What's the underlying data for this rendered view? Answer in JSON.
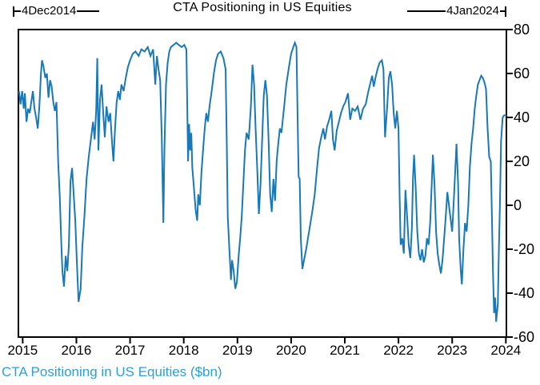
{
  "title": "CTA Positioning in US Equities",
  "annotations": {
    "start_label": "4Dec2014",
    "end_label": "4Jan2024"
  },
  "footer": {
    "legend": "CTA Positioning in US Equities ($bn)"
  },
  "colors": {
    "line": "#1878b8",
    "legend_text": "#2d9fd9",
    "axis": "#000000",
    "text": "#000000",
    "background": "#ffffff"
  },
  "chart_data": {
    "type": "line",
    "title": "CTA Positioning in US Equities",
    "xlabel": "",
    "ylabel": "$bn",
    "grid": false,
    "legend_position": "below-left",
    "x_start_label": "4Dec2014",
    "x_end_label": "4Jan2024",
    "x_range": [
      2014.92,
      2024.01
    ],
    "x_ticks": [
      2015,
      2016,
      2017,
      2018,
      2019,
      2020,
      2021,
      2022,
      2023,
      2024
    ],
    "ylim": [
      -60,
      80
    ],
    "y_ticks": [
      80,
      60,
      40,
      20,
      0,
      -20,
      -40,
      -60
    ],
    "series": [
      {
        "name": "CTA Positioning in US Equities ($bn)",
        "points": [
          [
            2014.93,
            52
          ],
          [
            2014.96,
            46
          ],
          [
            2014.99,
            52
          ],
          [
            2015.02,
            44
          ],
          [
            2015.04,
            51
          ],
          [
            2015.07,
            38
          ],
          [
            2015.1,
            44
          ],
          [
            2015.13,
            42
          ],
          [
            2015.16,
            47
          ],
          [
            2015.19,
            52
          ],
          [
            2015.22,
            44
          ],
          [
            2015.25,
            40
          ],
          [
            2015.28,
            35
          ],
          [
            2015.31,
            45
          ],
          [
            2015.34,
            60
          ],
          [
            2015.36,
            66
          ],
          [
            2015.39,
            63
          ],
          [
            2015.42,
            58
          ],
          [
            2015.45,
            60
          ],
          [
            2015.48,
            49
          ],
          [
            2015.51,
            57
          ],
          [
            2015.54,
            54
          ],
          [
            2015.57,
            47
          ],
          [
            2015.6,
            43
          ],
          [
            2015.63,
            47
          ],
          [
            2015.66,
            20
          ],
          [
            2015.69,
            4
          ],
          [
            2015.72,
            -18
          ],
          [
            2015.74,
            -30
          ],
          [
            2015.77,
            -37
          ],
          [
            2015.8,
            -23
          ],
          [
            2015.83,
            -30
          ],
          [
            2015.86,
            -18
          ],
          [
            2015.89,
            11
          ],
          [
            2015.92,
            17
          ],
          [
            2015.95,
            5
          ],
          [
            2015.98,
            -7
          ],
          [
            2016.01,
            -26
          ],
          [
            2016.04,
            -44
          ],
          [
            2016.08,
            -38
          ],
          [
            2016.11,
            -19
          ],
          [
            2016.15,
            -5
          ],
          [
            2016.19,
            12
          ],
          [
            2016.23,
            22
          ],
          [
            2016.27,
            30
          ],
          [
            2016.31,
            38
          ],
          [
            2016.34,
            30
          ],
          [
            2016.37,
            44
          ],
          [
            2016.39,
            67
          ],
          [
            2016.41,
            25
          ],
          [
            2016.44,
            48
          ],
          [
            2016.47,
            55
          ],
          [
            2016.5,
            42
          ],
          [
            2016.53,
            31
          ],
          [
            2016.56,
            45
          ],
          [
            2016.6,
            38
          ],
          [
            2016.63,
            42
          ],
          [
            2016.66,
            30
          ],
          [
            2016.69,
            20
          ],
          [
            2016.72,
            35
          ],
          [
            2016.75,
            47
          ],
          [
            2016.78,
            52
          ],
          [
            2016.81,
            48
          ],
          [
            2016.84,
            55
          ],
          [
            2016.88,
            52
          ],
          [
            2016.92,
            58
          ],
          [
            2016.96,
            63
          ],
          [
            2017.0,
            66
          ],
          [
            2017.05,
            69
          ],
          [
            2017.1,
            70
          ],
          [
            2017.16,
            68
          ],
          [
            2017.21,
            71
          ],
          [
            2017.27,
            70
          ],
          [
            2017.33,
            72
          ],
          [
            2017.38,
            68
          ],
          [
            2017.43,
            71
          ],
          [
            2017.47,
            55
          ],
          [
            2017.5,
            68
          ],
          [
            2017.53,
            62
          ],
          [
            2017.56,
            57
          ],
          [
            2017.59,
            31
          ],
          [
            2017.62,
            -8
          ],
          [
            2017.64,
            25
          ],
          [
            2017.67,
            55
          ],
          [
            2017.7,
            65
          ],
          [
            2017.73,
            70
          ],
          [
            2017.76,
            72
          ],
          [
            2017.81,
            73
          ],
          [
            2017.86,
            74
          ],
          [
            2017.91,
            73
          ],
          [
            2017.96,
            72
          ],
          [
            2018.01,
            73
          ],
          [
            2018.05,
            71
          ],
          [
            2018.08,
            20
          ],
          [
            2018.1,
            37
          ],
          [
            2018.12,
            25
          ],
          [
            2018.14,
            33
          ],
          [
            2018.16,
            17
          ],
          [
            2018.19,
            8
          ],
          [
            2018.22,
            -2
          ],
          [
            2018.25,
            -7
          ],
          [
            2018.27,
            5
          ],
          [
            2018.3,
            0
          ],
          [
            2018.33,
            15
          ],
          [
            2018.36,
            25
          ],
          [
            2018.39,
            35
          ],
          [
            2018.42,
            42
          ],
          [
            2018.45,
            38
          ],
          [
            2018.48,
            45
          ],
          [
            2018.52,
            52
          ],
          [
            2018.56,
            60
          ],
          [
            2018.6,
            66
          ],
          [
            2018.64,
            69
          ],
          [
            2018.69,
            70
          ],
          [
            2018.74,
            67
          ],
          [
            2018.78,
            62
          ],
          [
            2018.8,
            30
          ],
          [
            2018.82,
            -5
          ],
          [
            2018.85,
            -20
          ],
          [
            2018.88,
            -34
          ],
          [
            2018.9,
            -25
          ],
          [
            2018.93,
            -30
          ],
          [
            2018.96,
            -38
          ],
          [
            2018.99,
            -35
          ],
          [
            2019.02,
            -24
          ],
          [
            2019.05,
            -15
          ],
          [
            2019.08,
            -5
          ],
          [
            2019.11,
            10
          ],
          [
            2019.14,
            25
          ],
          [
            2019.17,
            33
          ],
          [
            2019.21,
            30
          ],
          [
            2019.25,
            45
          ],
          [
            2019.28,
            64
          ],
          [
            2019.31,
            55
          ],
          [
            2019.34,
            34
          ],
          [
            2019.37,
            16
          ],
          [
            2019.4,
            -4
          ],
          [
            2019.43,
            10
          ],
          [
            2019.46,
            30
          ],
          [
            2019.49,
            50
          ],
          [
            2019.52,
            57
          ],
          [
            2019.55,
            50
          ],
          [
            2019.58,
            30
          ],
          [
            2019.61,
            5
          ],
          [
            2019.64,
            -3
          ],
          [
            2019.67,
            12
          ],
          [
            2019.7,
            2
          ],
          [
            2019.73,
            20
          ],
          [
            2019.76,
            28
          ],
          [
            2019.79,
            35
          ],
          [
            2019.82,
            33
          ],
          [
            2019.87,
            45
          ],
          [
            2019.91,
            55
          ],
          [
            2019.96,
            63
          ],
          [
            2020.0,
            69
          ],
          [
            2020.04,
            72
          ],
          [
            2020.07,
            74
          ],
          [
            2020.1,
            72
          ],
          [
            2020.12,
            40
          ],
          [
            2020.14,
            13
          ],
          [
            2020.16,
            12
          ],
          [
            2020.18,
            -15
          ],
          [
            2020.21,
            -29
          ],
          [
            2020.24,
            -25
          ],
          [
            2020.28,
            -20
          ],
          [
            2020.32,
            -14
          ],
          [
            2020.36,
            -8
          ],
          [
            2020.4,
            -2
          ],
          [
            2020.44,
            5
          ],
          [
            2020.48,
            16
          ],
          [
            2020.52,
            26
          ],
          [
            2020.56,
            31
          ],
          [
            2020.6,
            35
          ],
          [
            2020.63,
            30
          ],
          [
            2020.67,
            36
          ],
          [
            2020.71,
            39
          ],
          [
            2020.75,
            43
          ],
          [
            2020.78,
            30
          ],
          [
            2020.81,
            25
          ],
          [
            2020.85,
            34
          ],
          [
            2020.89,
            38
          ],
          [
            2020.93,
            42
          ],
          [
            2020.97,
            45
          ],
          [
            2021.01,
            47
          ],
          [
            2021.06,
            51
          ],
          [
            2021.1,
            39
          ],
          [
            2021.14,
            44
          ],
          [
            2021.19,
            43
          ],
          [
            2021.24,
            45
          ],
          [
            2021.29,
            39
          ],
          [
            2021.34,
            44
          ],
          [
            2021.39,
            46
          ],
          [
            2021.43,
            51
          ],
          [
            2021.47,
            55
          ],
          [
            2021.51,
            59
          ],
          [
            2021.54,
            54
          ],
          [
            2021.57,
            58
          ],
          [
            2021.61,
            62
          ],
          [
            2021.65,
            65
          ],
          [
            2021.69,
            66
          ],
          [
            2021.72,
            62
          ],
          [
            2021.75,
            31
          ],
          [
            2021.79,
            45
          ],
          [
            2021.82,
            58
          ],
          [
            2021.85,
            61
          ],
          [
            2021.88,
            55
          ],
          [
            2021.91,
            42
          ],
          [
            2021.94,
            35
          ],
          [
            2021.97,
            43
          ],
          [
            2022.0,
            35
          ],
          [
            2022.02,
            5
          ],
          [
            2022.04,
            -18
          ],
          [
            2022.07,
            -15
          ],
          [
            2022.1,
            -22
          ],
          [
            2022.13,
            7
          ],
          [
            2022.16,
            -5
          ],
          [
            2022.19,
            -18
          ],
          [
            2022.22,
            -24
          ],
          [
            2022.25,
            -10
          ],
          [
            2022.27,
            12
          ],
          [
            2022.29,
            23
          ],
          [
            2022.32,
            8
          ],
          [
            2022.35,
            -12
          ],
          [
            2022.38,
            -22
          ],
          [
            2022.41,
            -25
          ],
          [
            2022.44,
            -20
          ],
          [
            2022.47,
            -26
          ],
          [
            2022.5,
            -23
          ],
          [
            2022.53,
            -15
          ],
          [
            2022.56,
            -18
          ],
          [
            2022.59,
            -8
          ],
          [
            2022.62,
            10
          ],
          [
            2022.64,
            23
          ],
          [
            2022.67,
            10
          ],
          [
            2022.7,
            -12
          ],
          [
            2022.73,
            -22
          ],
          [
            2022.76,
            -27
          ],
          [
            2022.79,
            -31
          ],
          [
            2022.82,
            -25
          ],
          [
            2022.85,
            -15
          ],
          [
            2022.88,
            -5
          ],
          [
            2022.91,
            6
          ],
          [
            2022.94,
            0
          ],
          [
            2022.97,
            -6
          ],
          [
            2023.0,
            -12
          ],
          [
            2023.03,
            2
          ],
          [
            2023.06,
            17
          ],
          [
            2023.08,
            28
          ],
          [
            2023.11,
            10
          ],
          [
            2023.13,
            -15
          ],
          [
            2023.16,
            -30
          ],
          [
            2023.18,
            -36
          ],
          [
            2023.21,
            -20
          ],
          [
            2023.24,
            -8
          ],
          [
            2023.27,
            -12
          ],
          [
            2023.3,
            0
          ],
          [
            2023.33,
            18
          ],
          [
            2023.36,
            28
          ],
          [
            2023.39,
            35
          ],
          [
            2023.42,
            44
          ],
          [
            2023.45,
            50
          ],
          [
            2023.48,
            55
          ],
          [
            2023.51,
            57
          ],
          [
            2023.54,
            59
          ],
          [
            2023.57,
            58
          ],
          [
            2023.6,
            56
          ],
          [
            2023.63,
            53
          ],
          [
            2023.66,
            35
          ],
          [
            2023.69,
            22
          ],
          [
            2023.72,
            20
          ],
          [
            2023.74,
            -5
          ],
          [
            2023.76,
            -30
          ],
          [
            2023.78,
            -49
          ],
          [
            2023.8,
            -42
          ],
          [
            2023.82,
            -53
          ],
          [
            2023.85,
            -45
          ],
          [
            2023.87,
            -20
          ],
          [
            2023.89,
            0
          ],
          [
            2023.91,
            29
          ],
          [
            2023.94,
            40
          ],
          [
            2023.97,
            41
          ],
          [
            2024.01,
            41
          ]
        ]
      }
    ]
  }
}
